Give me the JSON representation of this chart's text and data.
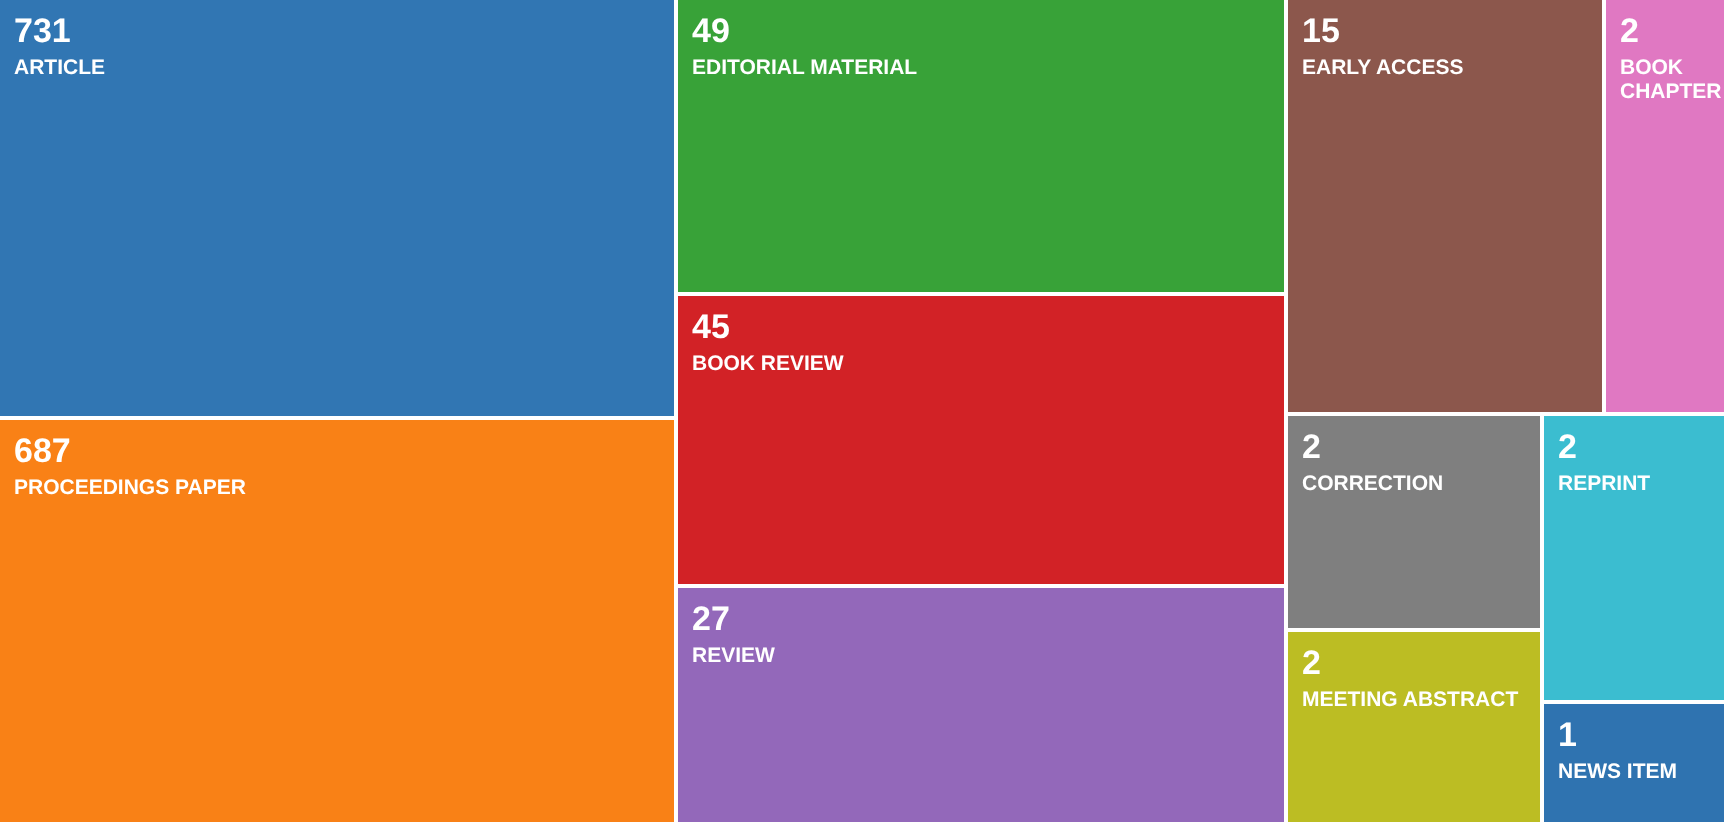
{
  "chart_data": {
    "type": "other",
    "categories": [
      "ARTICLE",
      "PROCEEDINGS PAPER",
      "EDITORIAL MATERIAL",
      "BOOK REVIEW",
      "REVIEW",
      "EARLY ACCESS",
      "BOOK CHAPTER",
      "CORRECTION",
      "REPRINT",
      "MEETING ABSTRACT",
      "NEWS ITEM"
    ],
    "values": [
      731,
      687,
      49,
      45,
      27,
      15,
      2,
      2,
      2,
      2,
      1
    ],
    "colors": [
      "#3176b3",
      "#f98116",
      "#38a238",
      "#d22226",
      "#9368ba",
      "#8c574c",
      "#e078c2",
      "#7f7f7f",
      "#3bbdd0",
      "#bcbd23",
      "#2f73b0"
    ],
    "data_labels": true
  }
}
